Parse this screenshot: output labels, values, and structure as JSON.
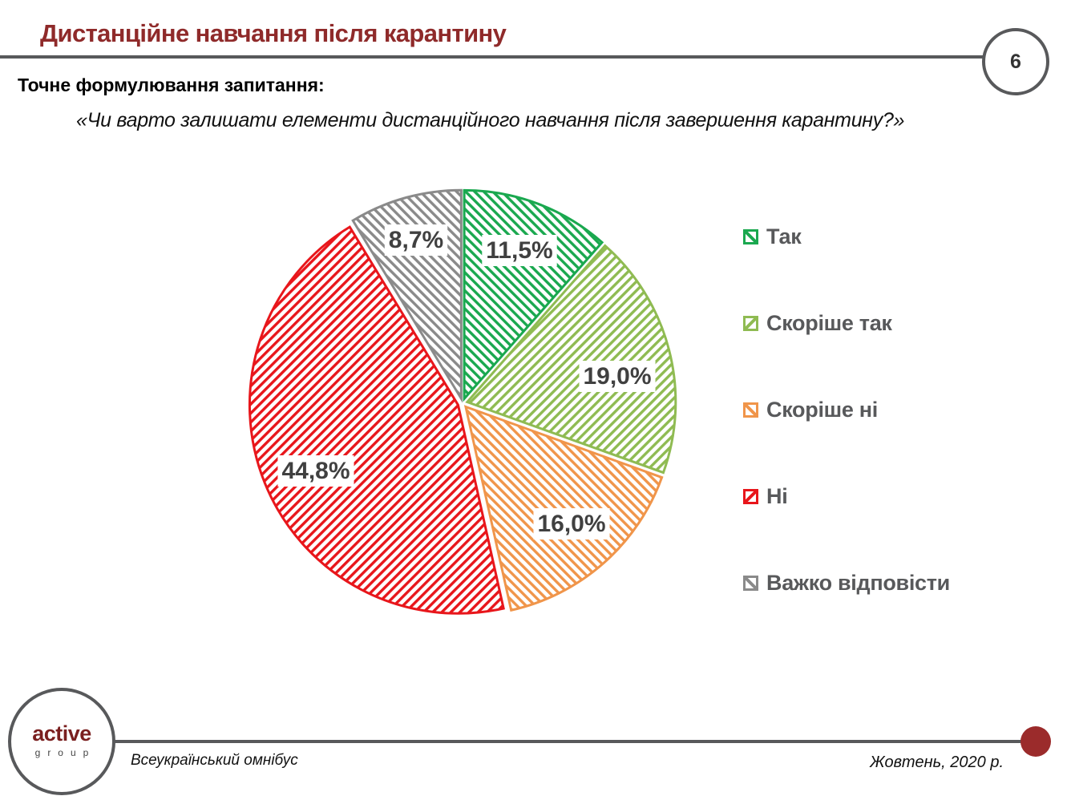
{
  "header": {
    "title": "Дистанційне навчання після карантину",
    "page_number": "6"
  },
  "question": {
    "label": "Точне формулювання запитання:",
    "text": "«Чи варто залишати елементи дистанційного навчання після завершення карантину?»"
  },
  "colors": {
    "brand": "#8f2a2a",
    "rule": "#58595b",
    "accent_dot": "#9b2b2b"
  },
  "chart_data": {
    "type": "pie",
    "title": "",
    "start_angle_deg": 0,
    "direction": "clockwise",
    "exploded": true,
    "legend_position": "right",
    "categories": [
      "Так",
      "Скоріше так",
      "Скоріше ні",
      "Ні",
      "Важко відповісти"
    ],
    "values": [
      11.5,
      19.0,
      16.0,
      44.8,
      8.7
    ],
    "labels": [
      "11,5%",
      "19,0%",
      "16,0%",
      "44,8%",
      "8,7%"
    ],
    "colors": [
      "#1aa84f",
      "#8fbb52",
      "#f0954a",
      "#e8161b",
      "#8a8a8a"
    ],
    "hatch": [
      "backslash",
      "slash",
      "backslash",
      "slash",
      "backslash"
    ]
  },
  "legend": {
    "items": [
      {
        "label": "Так"
      },
      {
        "label": "Скоріше так"
      },
      {
        "label": "Скоріше ні"
      },
      {
        "label": "Ні"
      },
      {
        "label": "Важко відповісти"
      }
    ]
  },
  "footer": {
    "logo_word": "active",
    "logo_sub": "group",
    "left": "Всеукраїнський омнібус",
    "right": "Жовтень, 2020 р."
  }
}
